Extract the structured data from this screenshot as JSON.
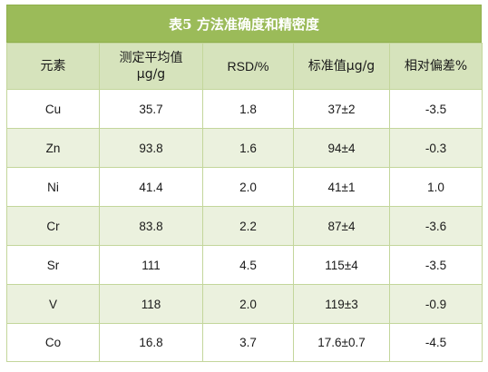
{
  "title": "表5  方法准确度和精密度",
  "headers": {
    "element": "元素",
    "measured_line1": "测定平均值",
    "measured_line2": "μg/g",
    "rsd": "RSD/%",
    "standard": "标准值μg/g",
    "deviation": "相对偏差%"
  },
  "rows": [
    {
      "element": "Cu",
      "measured": "35.7",
      "rsd": "1.8",
      "standard": "37±2",
      "deviation": "-3.5"
    },
    {
      "element": "Zn",
      "measured": "93.8",
      "rsd": "1.6",
      "standard": "94±4",
      "deviation": "-0.3"
    },
    {
      "element": "Ni",
      "measured": "41.4",
      "rsd": "2.0",
      "standard": "41±1",
      "deviation": "1.0"
    },
    {
      "element": "Cr",
      "measured": "83.8",
      "rsd": "2.2",
      "standard": "87±4",
      "deviation": "-3.6"
    },
    {
      "element": "Sr",
      "measured": "111",
      "rsd": "4.5",
      "standard": "115±4",
      "deviation": "-3.5"
    },
    {
      "element": "V",
      "measured": "118",
      "rsd": "2.0",
      "standard": "119±3",
      "deviation": "-0.9"
    },
    {
      "element": "Co",
      "measured": "16.8",
      "rsd": "3.7",
      "standard": "17.6±0.7",
      "deviation": "-4.5"
    }
  ],
  "colors": {
    "title_bg": "#9bbb59",
    "header_bg": "#d6e3bc",
    "band_bg": "#ebf1de",
    "border": "#c3d69b"
  }
}
